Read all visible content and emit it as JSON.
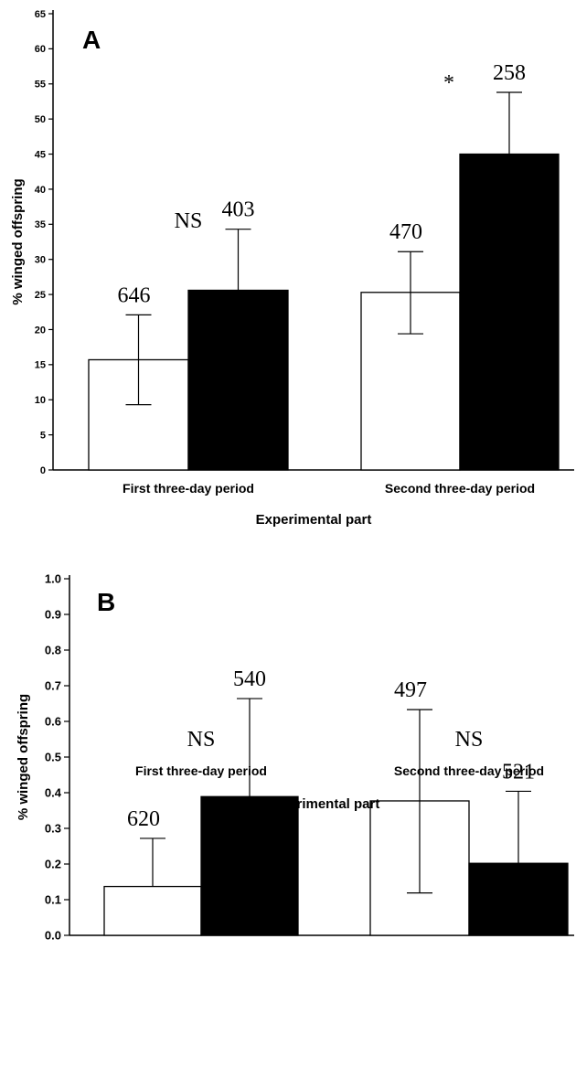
{
  "chart_data": [
    {
      "type": "bar",
      "panel_label": "A",
      "categories": [
        "First three-day period",
        "Second three-day period"
      ],
      "series": [
        {
          "fill": "#ffffff",
          "values": [
            15.7,
            25.3
          ],
          "error_low": [
            9.3,
            19.4
          ],
          "error_high": [
            22.1,
            31.1
          ],
          "n_labels": [
            "646",
            "470"
          ]
        },
        {
          "fill": "#000000",
          "values": [
            25.6,
            45.0
          ],
          "error_low": [
            25.6,
            45.0
          ],
          "error_high": [
            34.3,
            53.8
          ],
          "n_labels": [
            "403",
            "258"
          ]
        }
      ],
      "significance": [
        "NS",
        "*"
      ],
      "xlabel": "Experimental part",
      "ylabel": "% winged offspring",
      "ylim": [
        0,
        65
      ],
      "yticks": [
        "0",
        "5",
        "10",
        "15",
        "20",
        "25",
        "30",
        "35",
        "40",
        "45",
        "50",
        "55",
        "60",
        "65"
      ],
      "grid": false
    },
    {
      "type": "bar",
      "panel_label": "B",
      "categories": [
        "First three-day period",
        "Second three-day period"
      ],
      "series": [
        {
          "fill": "#ffffff",
          "values": [
            0.137,
            0.377
          ],
          "error_low": [
            0.137,
            0.119
          ],
          "error_high": [
            0.272,
            0.633
          ],
          "n_labels": [
            "620",
            "497"
          ]
        },
        {
          "fill": "#000000",
          "values": [
            0.389,
            0.202
          ],
          "error_low": [
            0.389,
            0.202
          ],
          "error_high": [
            0.664,
            0.404
          ],
          "n_labels": [
            "540",
            "521"
          ]
        }
      ],
      "significance": [
        "NS",
        "NS"
      ],
      "xlabel": "Experimental part",
      "ylabel": "% winged offspring",
      "ylim": [
        0,
        1.0
      ],
      "yticks": [
        "0.0",
        "0.1",
        "0.2",
        "0.3",
        "0.4",
        "0.5",
        "0.6",
        "0.7",
        "0.8",
        "0.9",
        "1.0"
      ],
      "grid": false
    }
  ]
}
